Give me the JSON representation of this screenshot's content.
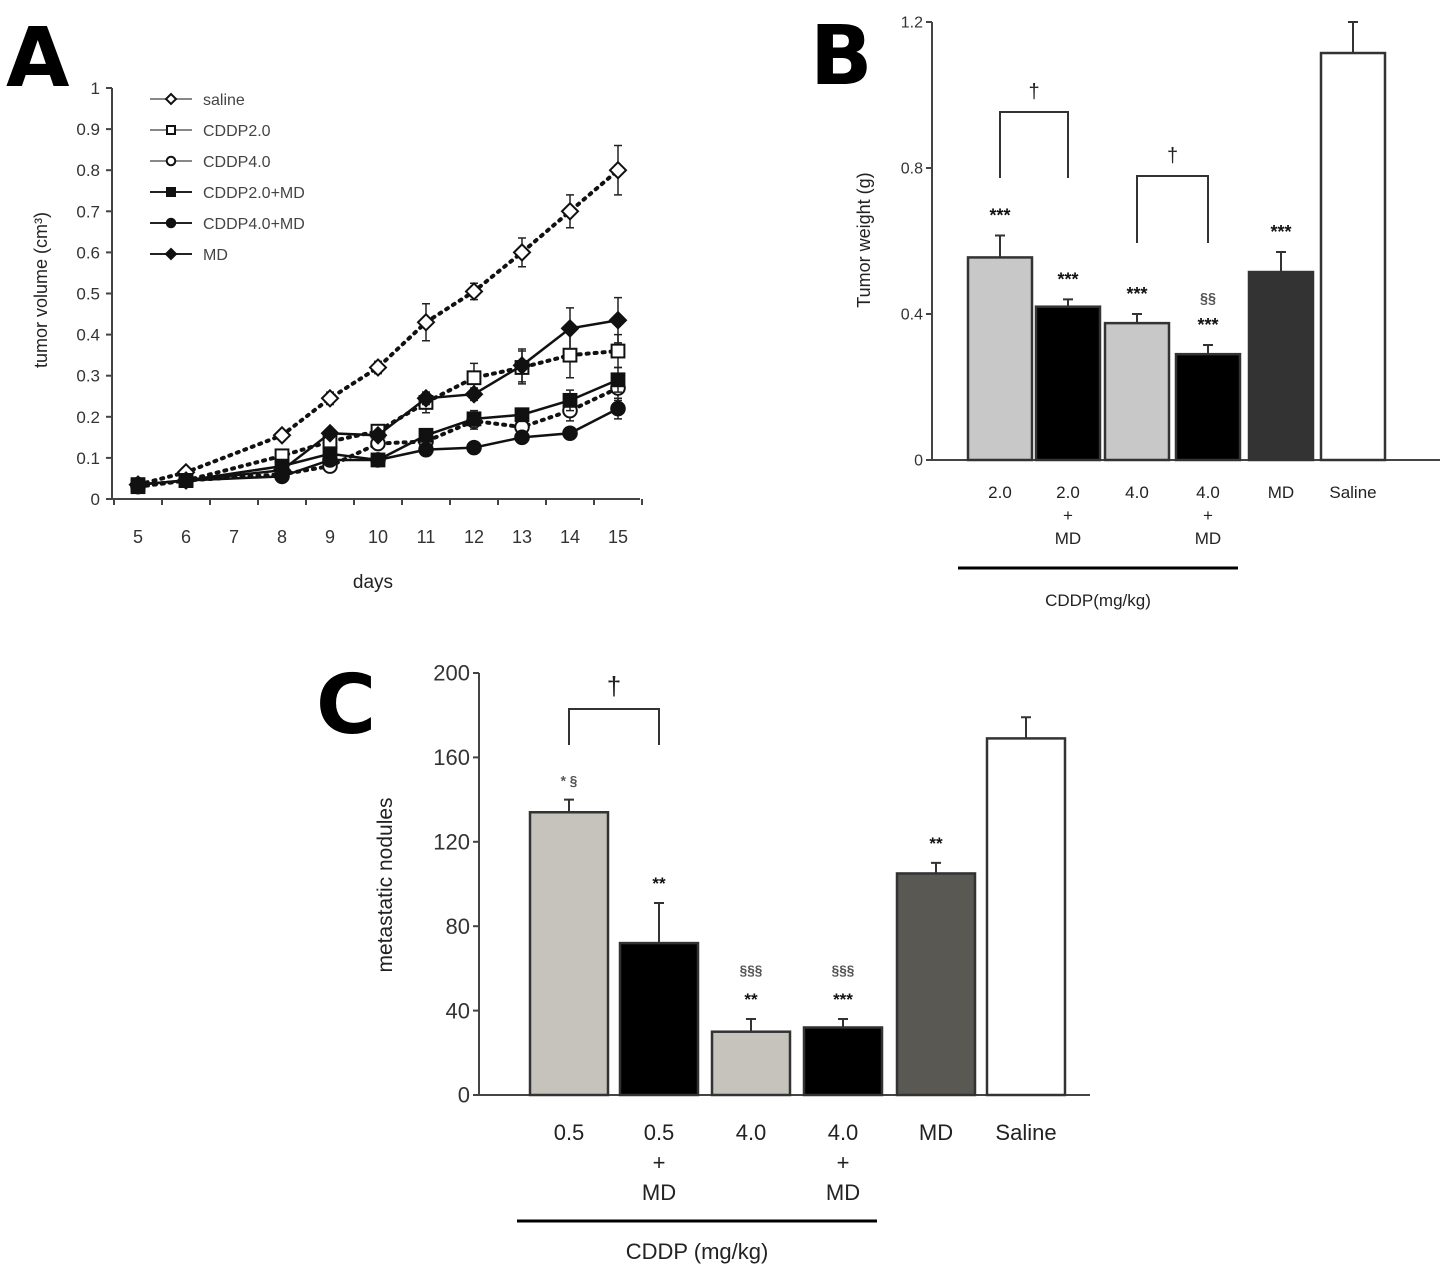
{
  "panels": {
    "a": "A",
    "b": "B",
    "c": "C"
  },
  "chart_data": [
    {
      "type": "line",
      "panel": "A",
      "xlabel": "days",
      "ylabel": "tumor volume (cm³)",
      "x_ticks": [
        5,
        6,
        7,
        8,
        9,
        10,
        11,
        12,
        13,
        14,
        15
      ],
      "y_ticks": [
        "0",
        "0.1",
        "0.2",
        "0.3",
        "0.4",
        "0.5",
        "0.6",
        "0.7",
        "0.8",
        "0.9",
        "1"
      ],
      "xlim": [
        5,
        15
      ],
      "ylim": [
        0,
        1
      ],
      "grid": false,
      "legend_position": "top-left",
      "x": [
        5,
        6,
        8,
        9,
        10,
        11,
        12,
        13,
        14,
        15
      ],
      "series": [
        {
          "name": "saline",
          "marker": "open-diamond",
          "line": "dotted",
          "values": [
            0.035,
            0.065,
            0.155,
            0.245,
            0.32,
            0.43,
            0.505,
            0.6,
            0.7,
            0.8
          ],
          "error": [
            0.01,
            0.01,
            0.01,
            0.015,
            0.015,
            0.045,
            0.02,
            0.035,
            0.04,
            0.06
          ]
        },
        {
          "name": "CDDP2.0",
          "marker": "open-square",
          "line": "dotted",
          "values": [
            0.03,
            0.045,
            0.105,
            0.14,
            0.165,
            0.235,
            0.295,
            0.32,
            0.35,
            0.36
          ],
          "error": [
            0.01,
            0.01,
            0.01,
            0.02,
            0.015,
            0.025,
            0.035,
            0.04,
            0.055,
            0.04
          ]
        },
        {
          "name": "CDDP4.0",
          "marker": "open-circle",
          "line": "dotted",
          "values": [
            0.03,
            0.045,
            0.06,
            0.08,
            0.135,
            0.14,
            0.19,
            0.175,
            0.215,
            0.27
          ],
          "error": [
            0.01,
            0.01,
            0.01,
            0.01,
            0.015,
            0.02,
            0.02,
            0.02,
            0.025,
            0.03
          ]
        },
        {
          "name": "CDDP2.0+MD",
          "marker": "filled-square",
          "line": "solid",
          "values": [
            0.035,
            0.045,
            0.08,
            0.11,
            0.095,
            0.155,
            0.195,
            0.205,
            0.24,
            0.29
          ],
          "error": [
            0.01,
            0.01,
            0.01,
            0.01,
            0.01,
            0.015,
            0.02,
            0.015,
            0.025,
            0.03
          ]
        },
        {
          "name": "CDDP4.0+MD",
          "marker": "filled-circle",
          "line": "solid",
          "values": [
            0.035,
            0.045,
            0.055,
            0.095,
            0.095,
            0.12,
            0.125,
            0.15,
            0.16,
            0.22
          ],
          "error": [
            0.01,
            0.01,
            0.01,
            0.01,
            0.01,
            0.01,
            0.01,
            0.01,
            0.01,
            0.025
          ]
        },
        {
          "name": "MD",
          "marker": "filled-diamond",
          "line": "solid",
          "values": [
            0.035,
            0.045,
            0.07,
            0.16,
            0.155,
            0.245,
            0.255,
            0.325,
            0.415,
            0.435
          ],
          "error": [
            0.01,
            0.01,
            0.01,
            0.01,
            0.01,
            0.015,
            0.015,
            0.04,
            0.05,
            0.055
          ]
        }
      ]
    },
    {
      "type": "bar",
      "panel": "B",
      "ylabel": "Tumor weight (g)",
      "xlabel": "CDDP(mg/kg)",
      "y_ticks": [
        "0",
        "0.4",
        "0.8",
        "1.2"
      ],
      "ylim": [
        0,
        1.2
      ],
      "grid": false,
      "categories": [
        [
          "2.0"
        ],
        [
          "2.0",
          "+",
          "MD"
        ],
        [
          "4.0"
        ],
        [
          "4.0",
          "+",
          "MD"
        ],
        [
          "MD"
        ],
        [
          "Saline"
        ]
      ],
      "values": [
        0.555,
        0.42,
        0.375,
        0.29,
        0.515,
        1.115
      ],
      "error": [
        0.06,
        0.02,
        0.025,
        0.025,
        0.055,
        0.085
      ],
      "colors": [
        "#c8c8c8",
        "#000000",
        "#c8c8c8",
        "#000000",
        "#333333",
        "#ffffff"
      ],
      "annotations": [
        {
          "bar": 0,
          "lines": [
            "***"
          ]
        },
        {
          "bar": 1,
          "lines": [
            "***"
          ]
        },
        {
          "bar": 2,
          "lines": [
            "***"
          ]
        },
        {
          "bar": 3,
          "lines": [
            "§§",
            "***"
          ]
        },
        {
          "bar": 4,
          "lines": [
            "***"
          ]
        }
      ],
      "brackets": [
        {
          "from": 0,
          "to": 1,
          "label": "†"
        },
        {
          "from": 2,
          "to": 3,
          "label": "†"
        }
      ]
    },
    {
      "type": "bar",
      "panel": "C",
      "ylabel": "metastatic nodules",
      "xlabel": "CDDP (mg/kg)",
      "y_ticks": [
        "0",
        "40",
        "80",
        "120",
        "160",
        "200"
      ],
      "ylim": [
        0,
        200
      ],
      "grid": false,
      "categories": [
        [
          "0.5"
        ],
        [
          "0.5",
          "+",
          "MD"
        ],
        [
          "4.0"
        ],
        [
          "4.0",
          "+",
          "MD"
        ],
        [
          "MD"
        ],
        [
          "Saline"
        ]
      ],
      "values": [
        134,
        72,
        30,
        32,
        105,
        169
      ],
      "error": [
        6,
        19,
        6,
        4,
        5,
        10
      ],
      "colors": [
        "#c6c3bc",
        "#000000",
        "#c6c3bc",
        "#000000",
        "#595853",
        "#ffffff"
      ],
      "annotations": [
        {
          "bar": 0,
          "lines": [
            "*  §"
          ]
        },
        {
          "bar": 1,
          "lines": [
            "**"
          ]
        },
        {
          "bar": 2,
          "lines": [
            "§§§",
            "**"
          ]
        },
        {
          "bar": 3,
          "lines": [
            "§§§",
            "***"
          ]
        },
        {
          "bar": 4,
          "lines": [
            "**"
          ]
        }
      ],
      "brackets": [
        {
          "from": 0,
          "to": 1,
          "label": "†"
        }
      ]
    }
  ]
}
